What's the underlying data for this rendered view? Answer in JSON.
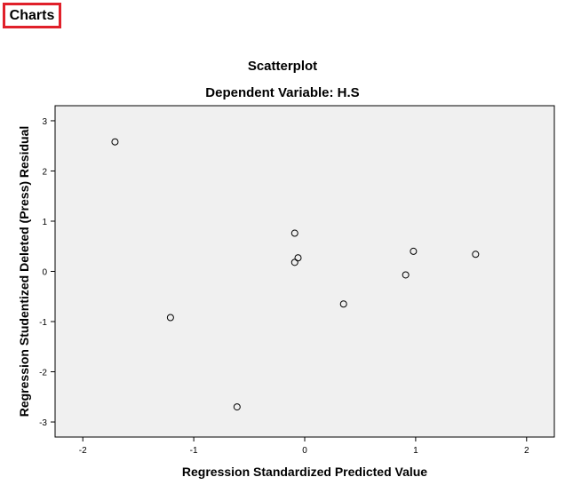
{
  "section": {
    "label": "Charts"
  },
  "chart_data": {
    "type": "scatter",
    "title": "Scatterplot",
    "subtitle": "Dependent Variable: H.S",
    "xlabel": "Regression Standardized Predicted Value",
    "ylabel": "Regression Studentized Deleted (Press) Residual",
    "xlim": [
      -2.25,
      2.25
    ],
    "ylim": [
      -3.3,
      3.3
    ],
    "xticks": [
      -2,
      -1,
      0,
      1,
      2
    ],
    "yticks": [
      -3,
      -2,
      -1,
      0,
      1,
      2,
      3
    ],
    "grid": false,
    "points": [
      {
        "x": -1.71,
        "y": 2.58
      },
      {
        "x": -1.21,
        "y": -0.92
      },
      {
        "x": -0.61,
        "y": -2.7
      },
      {
        "x": -0.09,
        "y": 0.76
      },
      {
        "x": -0.06,
        "y": 0.27
      },
      {
        "x": -0.09,
        "y": 0.18
      },
      {
        "x": 0.35,
        "y": -0.65
      },
      {
        "x": 0.91,
        "y": -0.07
      },
      {
        "x": 0.98,
        "y": 0.4
      },
      {
        "x": 1.54,
        "y": 0.34
      }
    ],
    "colors": {
      "plot_bg": "#f0f0f0",
      "marker_stroke": "#000000",
      "frame": "#000000"
    }
  }
}
